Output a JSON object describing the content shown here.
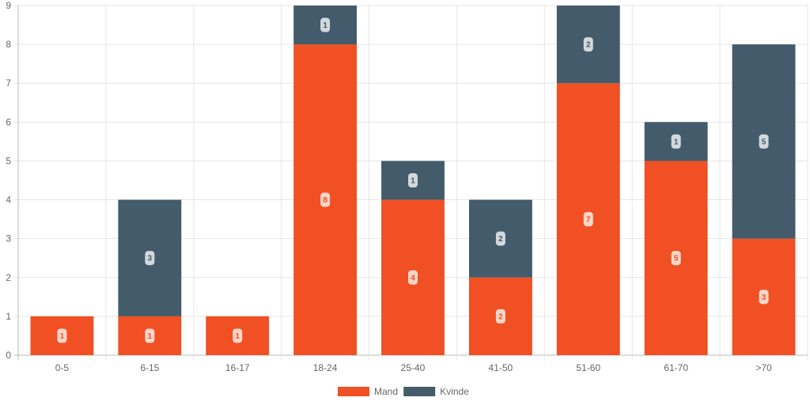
{
  "chart_data": {
    "type": "bar",
    "stacked": true,
    "categories": [
      "0-5",
      "6-15",
      "16-17",
      "18-24",
      "25-40",
      "41-50",
      "51-60",
      "61-70",
      ">70"
    ],
    "series": [
      {
        "name": "Mand",
        "color": "#f05023",
        "values": [
          1,
          1,
          1,
          8,
          4,
          2,
          7,
          5,
          3
        ]
      },
      {
        "name": "Kvinde",
        "color": "#435b6a",
        "values": [
          0,
          3,
          0,
          1,
          1,
          2,
          2,
          1,
          5
        ]
      }
    ],
    "ylim": [
      0,
      9
    ],
    "yticks": [
      0,
      1,
      2,
      3,
      4,
      5,
      6,
      7,
      8,
      9
    ],
    "grid": true,
    "legend_position": "bottom",
    "data_labels": true
  }
}
